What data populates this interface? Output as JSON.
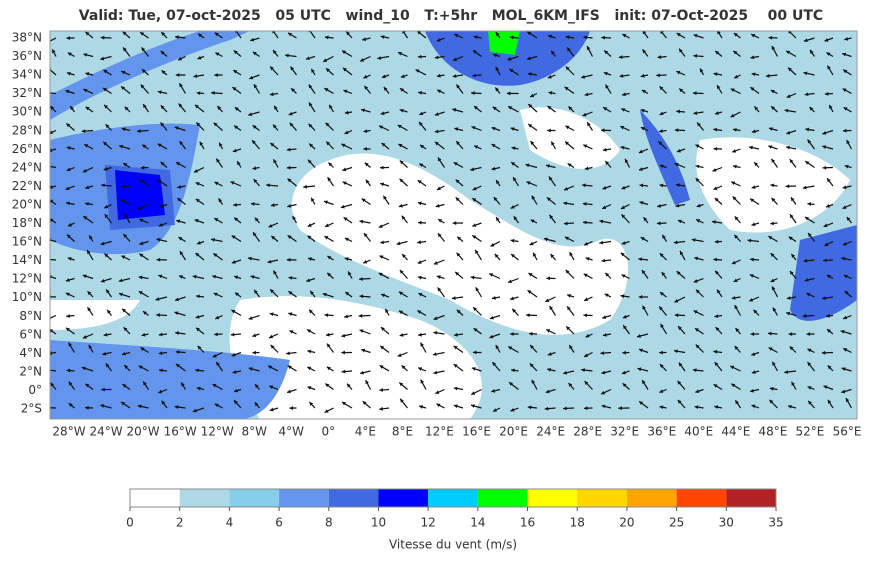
{
  "title": "Valid: Tue, 07-oct-2025   05 UTC   wind_10   T:+5hr   MOL_6KM_IFS   init: 07-Oct-2025    00 UTC",
  "map": {
    "lat_labels": [
      "38°N",
      "36°N",
      "34°N",
      "32°N",
      "30°N",
      "28°N",
      "26°N",
      "24°N",
      "22°N",
      "20°N",
      "18°N",
      "16°N",
      "14°N",
      "12°N",
      "10°N",
      "8°N",
      "6°N",
      "4°N",
      "2°N",
      "0°",
      "2°S"
    ],
    "lon_labels": [
      "28°W",
      "24°W",
      "20°W",
      "16°W",
      "12°W",
      "8°W",
      "4°W",
      "0°",
      "4°E",
      "8°E",
      "12°E",
      "16°E",
      "20°E",
      "24°E",
      "28°E",
      "32°E",
      "36°E",
      "40°E",
      "44°E",
      "48°E",
      "52°E",
      "56°E"
    ]
  },
  "colorbar": {
    "levels": [
      0,
      2,
      4,
      6,
      8,
      10,
      12,
      14,
      16,
      18,
      20,
      25,
      30,
      35
    ],
    "colors": [
      "#ffffff",
      "#add8e6",
      "#87ceeb",
      "#6495ed",
      "#4169e1",
      "#0000ff",
      "#00ccff",
      "#00ff00",
      "#ffff00",
      "#ffd700",
      "#ffa500",
      "#ff4500",
      "#b22222"
    ],
    "label": "Vitesse du vent (m/s)"
  }
}
